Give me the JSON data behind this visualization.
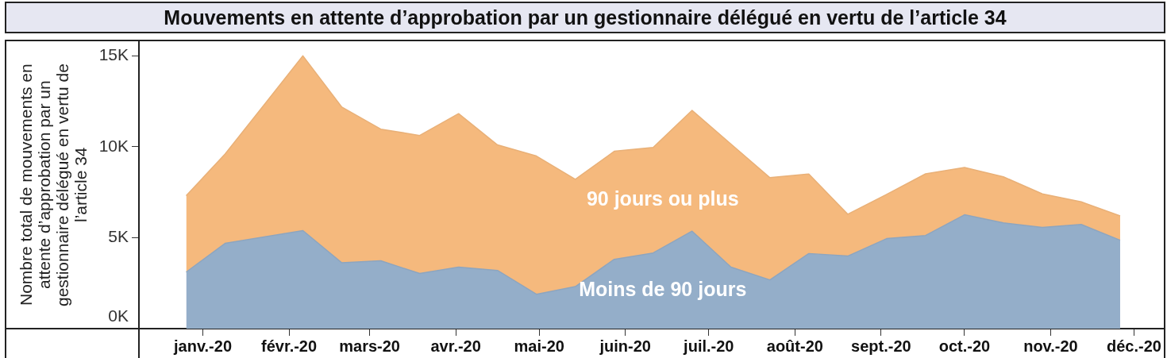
{
  "chart_data": {
    "type": "area",
    "stacked": true,
    "title": "Mouvements en attente d’approbation par un gestionnaire délégué en vertu de l’article 34",
    "ylabel": "Nombre total de mouvements en attente d’approbation par un gestionnaire délégué en vertu de l’article 34",
    "x": [
      "2019-12-26",
      "2020-01-09",
      "2020-01-23",
      "2020-02-06",
      "2020-02-20",
      "2020-03-05",
      "2020-03-19",
      "2020-04-02",
      "2020-04-16",
      "2020-04-30",
      "2020-05-14",
      "2020-05-28",
      "2020-06-11",
      "2020-06-25",
      "2020-07-09",
      "2020-07-23",
      "2020-08-06",
      "2020-08-20",
      "2020-09-03",
      "2020-09-17",
      "2020-10-01",
      "2020-10-15",
      "2020-10-29",
      "2020-11-12",
      "2020-11-26"
    ],
    "xlim": [
      "2019-12-09",
      "2020-12-12"
    ],
    "xticks": [
      {
        "value": "2020-01-01",
        "label": "janv.-20"
      },
      {
        "value": "2020-02-01",
        "label": "févr.-20"
      },
      {
        "value": "2020-03-01",
        "label": "mars-20"
      },
      {
        "value": "2020-04-01",
        "label": "avr.-20"
      },
      {
        "value": "2020-05-01",
        "label": "mai-20"
      },
      {
        "value": "2020-06-01",
        "label": "juin-20"
      },
      {
        "value": "2020-07-01",
        "label": "juil.-20"
      },
      {
        "value": "2020-08-01",
        "label": "août-20"
      },
      {
        "value": "2020-09-01",
        "label": "sept.-20"
      },
      {
        "value": "2020-10-01",
        "label": "oct.-20"
      },
      {
        "value": "2020-11-01",
        "label": "nov.-20"
      },
      {
        "value": "2020-12-01",
        "label": "déc.-20"
      }
    ],
    "ylim": [
      0,
      15800
    ],
    "yticks": [
      {
        "value": 0,
        "label": "0K"
      },
      {
        "value": 5000,
        "label": "5K"
      },
      {
        "value": 10000,
        "label": "10K"
      },
      {
        "value": 15000,
        "label": "15K"
      }
    ],
    "grid": false,
    "legend": false,
    "series": [
      {
        "name": "Moins de 90 jours",
        "color": "#94aec9",
        "values": [
          3110,
          4690,
          5040,
          5390,
          3620,
          3730,
          3030,
          3380,
          3200,
          1890,
          2310,
          3810,
          4160,
          5360,
          3380,
          2680,
          4130,
          3990,
          4950,
          5120,
          6260,
          5820,
          5560,
          5730,
          4860
        ]
      },
      {
        "name": "90 jours ou plus",
        "color": "#f5b97d",
        "values": [
          4200,
          4910,
          7260,
          9610,
          8560,
          7240,
          7590,
          8440,
          6900,
          7600,
          5900,
          5940,
          5800,
          6640,
          6770,
          5620,
          4370,
          2300,
          2430,
          3390,
          2600,
          2530,
          1850,
          1240,
          1340
        ]
      }
    ]
  }
}
